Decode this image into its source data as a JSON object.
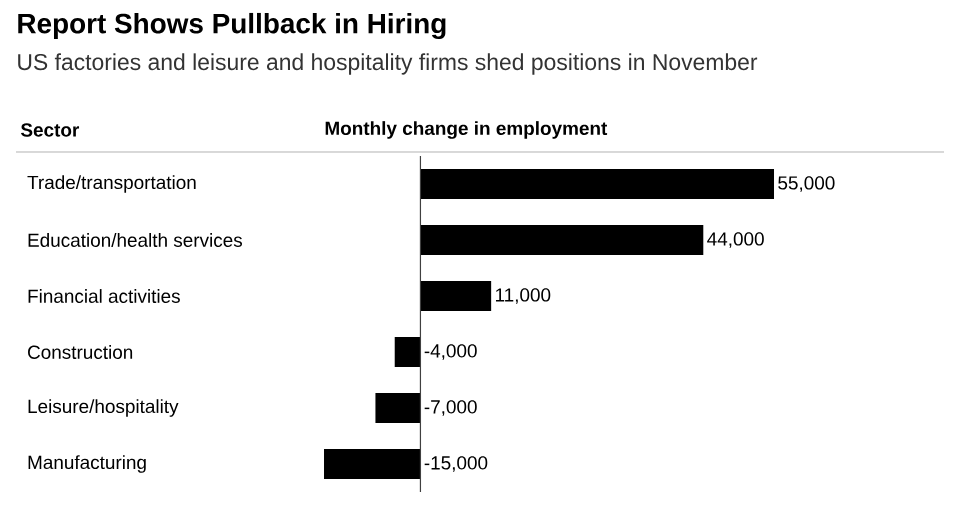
{
  "chart_data": {
    "type": "bar",
    "orientation": "horizontal",
    "title": "Report Shows Pullback in Hiring",
    "subtitle": "US factories and leisure and hospitality firms shed positions in November",
    "ylabel": "Sector",
    "xlabel": "Monthly change in employment",
    "categories": [
      "Trade/transportation",
      "Education/health services",
      "Financial activities",
      "Construction",
      "Leisure/hospitality",
      "Manufacturing"
    ],
    "values": [
      55000,
      44000,
      11000,
      -4000,
      -7000,
      -15000
    ],
    "value_labels": [
      "55,000",
      "44,000",
      "11,000",
      "-4,000",
      "-7,000",
      "-15,000"
    ],
    "color": "#000000"
  }
}
